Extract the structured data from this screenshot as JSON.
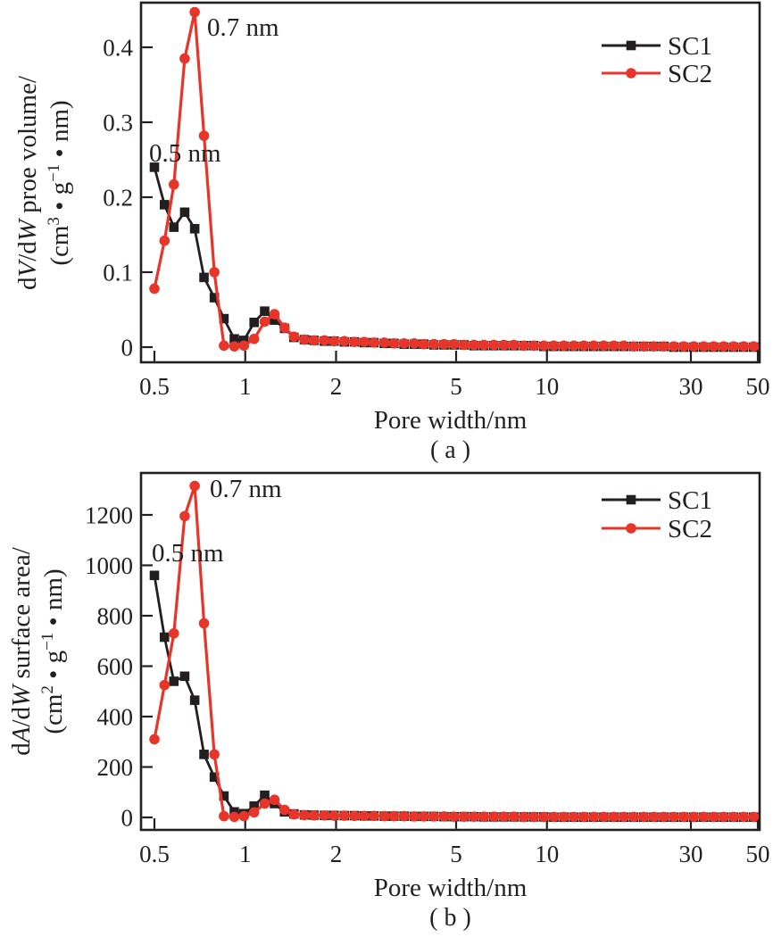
{
  "figure": {
    "background": "#ffffff",
    "axis_color": "#231f20",
    "series_colors": {
      "SC1": "#231f20",
      "SC2": "#e8352a"
    }
  },
  "chart_data": [
    {
      "id": "a",
      "type": "line",
      "panel_label": "( a )",
      "xlabel": "Pore width/nm",
      "ylabel_rich": {
        "line1": [
          {
            "t": "d"
          },
          {
            "t": "V",
            "i": true
          },
          {
            "t": "/d"
          },
          {
            "t": "W",
            "i": true
          },
          {
            "t": " proe volume/"
          }
        ],
        "line2": [
          {
            "t": "(cm"
          },
          {
            "t": "3",
            "sup": true
          },
          {
            "t": " • g"
          },
          {
            "t": "−1",
            "sup": true
          },
          {
            "t": " • nm)"
          }
        ]
      },
      "x_scale": "log",
      "xlim": [
        0.45,
        50.7
      ],
      "ylim": [
        -0.02,
        0.46
      ],
      "grid": false,
      "x_ticks": [
        "0.5",
        "1",
        "2",
        "5",
        "10",
        "30",
        "50"
      ],
      "y_ticks": [
        "0",
        "0.1",
        "0.2",
        "0.3",
        "0.4"
      ],
      "legend": {
        "position": "top-right",
        "entries": [
          "SC1",
          "SC2"
        ]
      },
      "annotations": [
        {
          "text": "0.7 nm"
        },
        {
          "text": "0.5 nm"
        }
      ],
      "x": [
        0.5,
        0.54,
        0.58,
        0.63,
        0.68,
        0.73,
        0.79,
        0.85,
        0.92,
        0.99,
        1.07,
        1.16,
        1.25,
        1.35,
        1.45,
        1.57,
        1.69,
        1.83,
        1.97,
        2.13,
        2.3,
        2.48,
        2.67,
        2.89,
        3.11,
        3.36,
        3.63,
        3.91,
        4.22,
        4.56,
        4.92,
        5.31,
        5.73,
        6.18,
        6.67,
        7.2,
        7.77,
        8.39,
        9.05,
        9.77,
        10.54,
        11.38,
        12.28,
        13.25,
        14.3,
        15.43,
        16.66,
        17.98,
        19.4,
        20.94,
        22.6,
        24.39,
        26.32,
        28.4,
        30.65,
        33.08,
        35.7,
        38.53,
        41.58,
        44.87,
        48.43
      ],
      "series": [
        {
          "name": "SC1",
          "marker": "square",
          "values": [
            0.24,
            0.19,
            0.16,
            0.18,
            0.158,
            0.093,
            0.066,
            0.038,
            0.011,
            0.009,
            0.033,
            0.048,
            0.036,
            0.025,
            0.013,
            0.01,
            0.009,
            0.008,
            0.008,
            0.007,
            0.007,
            0.006,
            0.006,
            0.005,
            0.005,
            0.004,
            0.004,
            0.004,
            0.003,
            0.003,
            0.003,
            0.003,
            0.002,
            0.002,
            0.002,
            0.002,
            0.002,
            0.002,
            0.002,
            0.001,
            0.001,
            0.001,
            0.001,
            0.001,
            0.001,
            0.001,
            0.001,
            0.001,
            0.001,
            0.001,
            0.001,
            0.001,
            0.0,
            0.0,
            0.0,
            0.0,
            0.0,
            0.0,
            0.0,
            0.0,
            0.0
          ]
        },
        {
          "name": "SC2",
          "marker": "circle",
          "values": [
            0.078,
            0.142,
            0.217,
            0.385,
            0.447,
            0.282,
            0.1,
            0.002,
            0.001,
            0.002,
            0.011,
            0.034,
            0.044,
            0.026,
            0.014,
            0.01,
            0.009,
            0.009,
            0.008,
            0.008,
            0.007,
            0.007,
            0.006,
            0.006,
            0.005,
            0.005,
            0.005,
            0.004,
            0.004,
            0.004,
            0.004,
            0.003,
            0.003,
            0.003,
            0.003,
            0.003,
            0.003,
            0.002,
            0.002,
            0.002,
            0.002,
            0.002,
            0.002,
            0.002,
            0.002,
            0.002,
            0.002,
            0.002,
            0.001,
            0.001,
            0.001,
            0.001,
            0.001,
            0.001,
            0.001,
            0.001,
            0.001,
            0.001,
            0.001,
            0.001,
            0.001
          ]
        }
      ]
    },
    {
      "id": "b",
      "type": "line",
      "panel_label": "( b )",
      "xlabel": "Pore width/nm",
      "ylabel_rich": {
        "line1": [
          {
            "t": "d"
          },
          {
            "t": "A",
            "i": true
          },
          {
            "t": "/d"
          },
          {
            "t": "W",
            "i": true
          },
          {
            "t": " surface area/"
          }
        ],
        "line2": [
          {
            "t": "(cm"
          },
          {
            "t": "2",
            "sup": true
          },
          {
            "t": " • g"
          },
          {
            "t": "−1",
            "sup": true
          },
          {
            "t": " • nm)"
          }
        ]
      },
      "x_scale": "log",
      "xlim": [
        0.45,
        50.7
      ],
      "ylim": [
        -50,
        1370
      ],
      "grid": false,
      "x_ticks": [
        "0.5",
        "1",
        "2",
        "5",
        "10",
        "30",
        "50"
      ],
      "y_ticks": [
        "0",
        "200",
        "400",
        "600",
        "800",
        "1000",
        "1200"
      ],
      "legend": {
        "position": "top-right",
        "entries": [
          "SC1",
          "SC2"
        ]
      },
      "annotations": [
        {
          "text": "0.7 nm"
        },
        {
          "text": "0.5 nm"
        }
      ],
      "x": [
        0.5,
        0.54,
        0.58,
        0.63,
        0.68,
        0.73,
        0.79,
        0.85,
        0.92,
        0.99,
        1.07,
        1.16,
        1.25,
        1.35,
        1.45,
        1.57,
        1.69,
        1.83,
        1.97,
        2.13,
        2.3,
        2.48,
        2.67,
        2.89,
        3.11,
        3.36,
        3.63,
        3.91,
        4.22,
        4.56,
        4.92,
        5.31,
        5.73,
        6.18,
        6.67,
        7.2,
        7.77,
        8.39,
        9.05,
        9.77,
        10.54,
        11.38,
        12.28,
        13.25,
        14.3,
        15.43,
        16.66,
        17.98,
        19.4,
        20.94,
        22.6,
        24.39,
        26.32,
        28.4,
        30.65,
        33.08,
        35.7,
        38.53,
        41.58,
        44.87,
        48.43
      ],
      "series": [
        {
          "name": "SC1",
          "marker": "square",
          "values": [
            960,
            715,
            540,
            560,
            465,
            250,
            160,
            85,
            22,
            15,
            45,
            88,
            55,
            22,
            14,
            10,
            9,
            8,
            8,
            7,
            7,
            6,
            6,
            5,
            5,
            5,
            4,
            4,
            4,
            3,
            3,
            3,
            3,
            2,
            2,
            2,
            2,
            2,
            2,
            2,
            1,
            1,
            1,
            1,
            1,
            1,
            1,
            1,
            1,
            1,
            1,
            1,
            1,
            1,
            1,
            1,
            1,
            1,
            1,
            1,
            1
          ]
        },
        {
          "name": "SC2",
          "marker": "circle",
          "values": [
            310,
            525,
            730,
            1195,
            1315,
            770,
            250,
            5,
            2,
            5,
            20,
            55,
            70,
            30,
            12,
            9,
            8,
            8,
            7,
            7,
            6,
            6,
            6,
            5,
            5,
            5,
            4,
            4,
            4,
            4,
            3,
            3,
            3,
            3,
            3,
            3,
            3,
            2,
            2,
            2,
            2,
            2,
            2,
            2,
            2,
            2,
            2,
            2,
            2,
            2,
            2,
            2,
            2,
            2,
            2,
            2,
            2,
            2,
            2,
            2,
            2
          ]
        }
      ]
    }
  ]
}
